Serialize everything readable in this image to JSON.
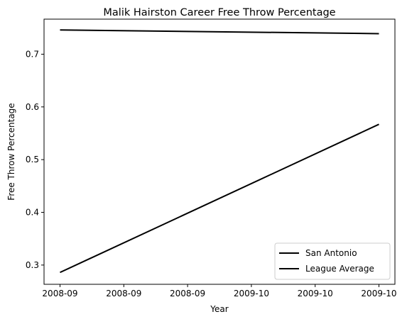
{
  "chart_data": {
    "type": "line",
    "title": "Malik Hairston Career Free Throw Percentage",
    "xlabel": "Year",
    "ylabel": "Free Throw Percentage",
    "x_range": [
      "2008-09",
      "2009-10"
    ],
    "x_tick_labels": [
      "2008-09",
      "2008-09",
      "2008-09",
      "2009-10",
      "2009-10",
      "2009-10"
    ],
    "y_ticks": [
      0.3,
      0.4,
      0.5,
      0.6,
      0.7
    ],
    "y_tick_labels": [
      "0.3",
      "0.4",
      "0.5",
      "0.6",
      "0.7"
    ],
    "ylim": [
      0.2635,
      0.7665
    ],
    "grid": false,
    "legend_position": "lower-right",
    "series": [
      {
        "name": "San Antonio",
        "x": [
          "2008-09",
          "2009-10"
        ],
        "y": [
          0.286,
          0.567
        ],
        "color": "#000000"
      },
      {
        "name": "League Average",
        "x": [
          "2008-09",
          "2009-10"
        ],
        "y": [
          0.746,
          0.739
        ],
        "color": "#000000"
      }
    ]
  }
}
